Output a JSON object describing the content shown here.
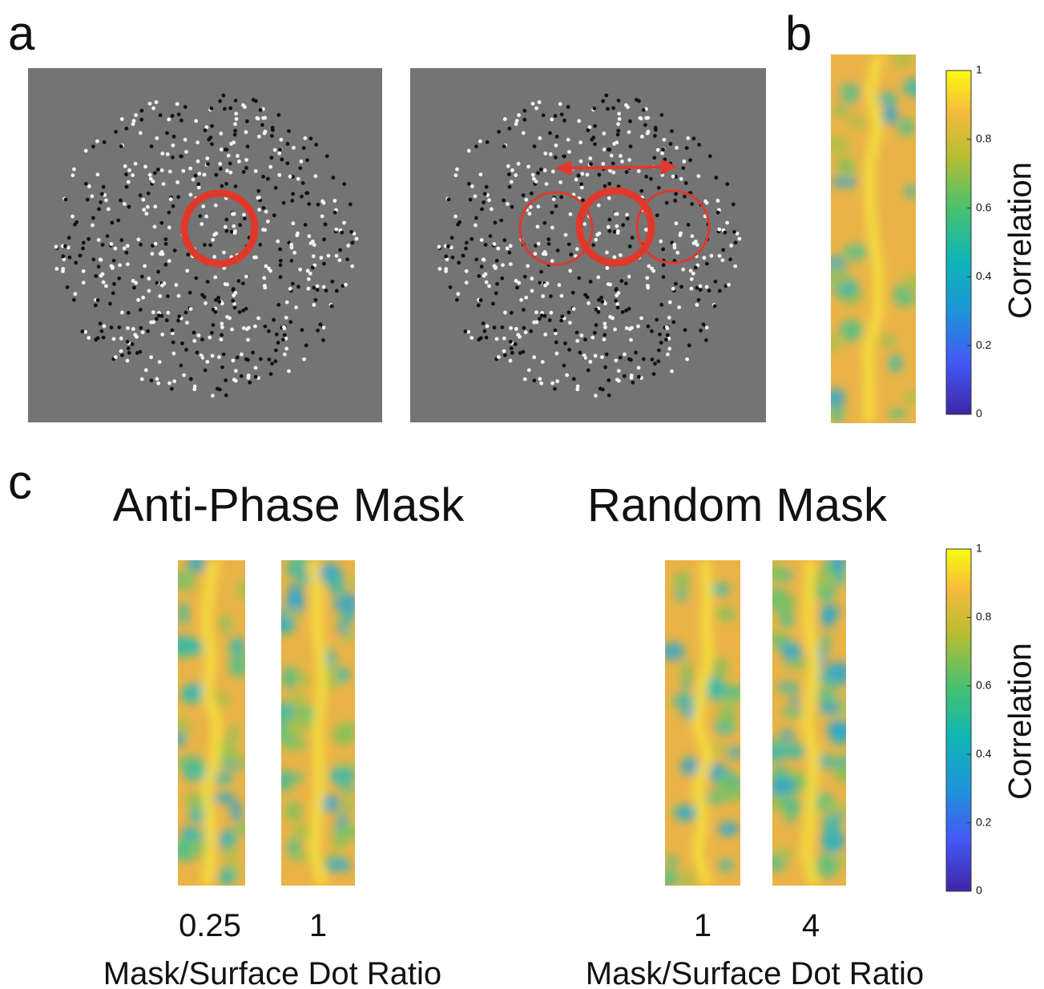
{
  "panel_a": {
    "label": "a"
  },
  "panel_b": {
    "label": "b",
    "colorbar": {
      "label": "Correlation",
      "ticks": [
        0,
        0.2,
        0.4,
        0.6,
        0.8,
        1
      ]
    }
  },
  "panel_c": {
    "label": "c",
    "groups": [
      {
        "title": "Anti-Phase Mask",
        "ratios": [
          0.25,
          1
        ],
        "xlabel": "Mask/Surface Dot Ratio"
      },
      {
        "title": "Random Mask",
        "ratios": [
          1,
          4
        ],
        "xlabel": "Mask/Surface Dot Ratio"
      }
    ],
    "colorbar": {
      "label": "Correlation",
      "ticks": [
        0,
        0.2,
        0.4,
        0.6,
        0.8,
        1
      ]
    }
  }
}
